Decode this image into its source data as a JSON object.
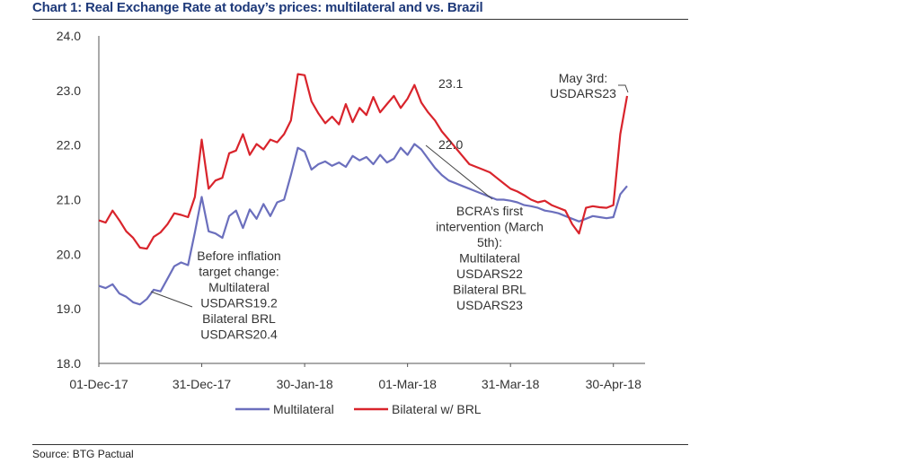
{
  "header": {
    "title": "Chart 1: Real Exchange Rate at today’s prices: multilateral and vs. Brazil"
  },
  "footer": {
    "source": "Source: BTG Pactual"
  },
  "colors": {
    "multilateral": "#6b6fbd",
    "bilateral": "#d9242c",
    "title": "#1f3a7a"
  },
  "chart_data": {
    "type": "line",
    "title": "Chart 1: Real Exchange Rate at today’s prices: multilateral and vs. Brazil",
    "xlabel": "",
    "ylabel": "",
    "ylim": [
      18.0,
      24.0
    ],
    "yticks": [
      "18.0",
      "19.0",
      "20.0",
      "21.0",
      "22.0",
      "23.0",
      "24.0"
    ],
    "xticks": [
      "01-Dec-17",
      "31-Dec-17",
      "30-Jan-18",
      "01-Mar-18",
      "31-Mar-18",
      "30-Apr-18"
    ],
    "grid": false,
    "legend": "bottom",
    "x": [
      "01-Dec-17",
      "03-Dec-17",
      "05-Dec-17",
      "07-Dec-17",
      "09-Dec-17",
      "11-Dec-17",
      "13-Dec-17",
      "15-Dec-17",
      "17-Dec-17",
      "19-Dec-17",
      "21-Dec-17",
      "23-Dec-17",
      "25-Dec-17",
      "27-Dec-17",
      "29-Dec-17",
      "31-Dec-17",
      "02-Jan-18",
      "04-Jan-18",
      "06-Jan-18",
      "08-Jan-18",
      "10-Jan-18",
      "12-Jan-18",
      "14-Jan-18",
      "16-Jan-18",
      "18-Jan-18",
      "20-Jan-18",
      "22-Jan-18",
      "24-Jan-18",
      "26-Jan-18",
      "28-Jan-18",
      "30-Jan-18",
      "01-Feb-18",
      "03-Feb-18",
      "05-Feb-18",
      "07-Feb-18",
      "09-Feb-18",
      "11-Feb-18",
      "13-Feb-18",
      "15-Feb-18",
      "17-Feb-18",
      "19-Feb-18",
      "21-Feb-18",
      "23-Feb-18",
      "25-Feb-18",
      "27-Feb-18",
      "01-Mar-18",
      "03-Mar-18",
      "05-Mar-18",
      "07-Mar-18",
      "09-Mar-18",
      "11-Mar-18",
      "13-Mar-18",
      "15-Mar-18",
      "17-Mar-18",
      "19-Mar-18",
      "21-Mar-18",
      "23-Mar-18",
      "25-Mar-18",
      "27-Mar-18",
      "29-Mar-18",
      "31-Mar-18",
      "02-Apr-18",
      "04-Apr-18",
      "06-Apr-18",
      "08-Apr-18",
      "10-Apr-18",
      "12-Apr-18",
      "14-Apr-18",
      "16-Apr-18",
      "18-Apr-18",
      "20-Apr-18",
      "22-Apr-18",
      "24-Apr-18",
      "26-Apr-18",
      "28-Apr-18",
      "30-Apr-18",
      "02-May-18",
      "03-May-18"
    ],
    "series": [
      {
        "name": "Multilateral",
        "values": [
          19.42,
          19.38,
          19.45,
          19.28,
          19.22,
          19.12,
          19.08,
          19.18,
          19.35,
          19.32,
          19.55,
          19.78,
          19.85,
          19.8,
          20.4,
          21.05,
          20.42,
          20.38,
          20.3,
          20.7,
          20.8,
          20.48,
          20.82,
          20.65,
          20.92,
          20.7,
          20.95,
          21.0,
          21.45,
          21.95,
          21.88,
          21.55,
          21.65,
          21.7,
          21.62,
          21.68,
          21.6,
          21.8,
          21.72,
          21.78,
          21.65,
          21.82,
          21.68,
          21.75,
          21.95,
          21.82,
          22.02,
          21.92,
          21.75,
          21.58,
          21.45,
          21.35,
          21.3,
          21.25,
          21.2,
          21.15,
          21.1,
          21.05,
          21.0,
          21.0,
          20.98,
          20.95,
          20.9,
          20.88,
          20.85,
          20.8,
          20.78,
          20.75,
          20.7,
          20.65,
          20.6,
          20.65,
          20.7,
          20.68,
          20.66,
          20.68,
          21.1,
          21.25
        ]
      },
      {
        "name": "Bilateral w/ BRL",
        "values": [
          20.62,
          20.58,
          20.8,
          20.62,
          20.42,
          20.3,
          20.12,
          20.1,
          20.32,
          20.4,
          20.55,
          20.75,
          20.72,
          20.68,
          21.05,
          22.1,
          21.2,
          21.35,
          21.4,
          21.85,
          21.9,
          22.2,
          21.82,
          22.02,
          21.92,
          22.1,
          22.05,
          22.2,
          22.45,
          23.3,
          23.28,
          22.8,
          22.58,
          22.4,
          22.52,
          22.38,
          22.75,
          22.42,
          22.68,
          22.55,
          22.88,
          22.6,
          22.75,
          22.9,
          22.68,
          22.85,
          23.1,
          22.78,
          22.6,
          22.45,
          22.25,
          22.1,
          21.95,
          21.8,
          21.65,
          21.6,
          21.55,
          21.5,
          21.4,
          21.3,
          21.2,
          21.15,
          21.08,
          21.0,
          20.95,
          20.98,
          20.9,
          20.85,
          20.8,
          20.55,
          20.38,
          20.85,
          20.88,
          20.86,
          20.85,
          20.9,
          22.2,
          22.9
        ]
      }
    ],
    "annotations": [
      {
        "lines": [
          "23.1"
        ]
      },
      {
        "lines": [
          "22.0"
        ]
      },
      {
        "lines": [
          "May 3rd:",
          "USDARS23"
        ]
      },
      {
        "lines": [
          "Before inflation",
          "target change:",
          "Multilateral",
          "USDARS19.2",
          "Bilateral BRL",
          "USDARS20.4"
        ]
      },
      {
        "lines": [
          "BCRA’s first",
          "intervention (March",
          "5th):",
          "Multilateral",
          "USDARS22",
          "Bilateral BRL",
          "USDARS23"
        ]
      }
    ]
  }
}
